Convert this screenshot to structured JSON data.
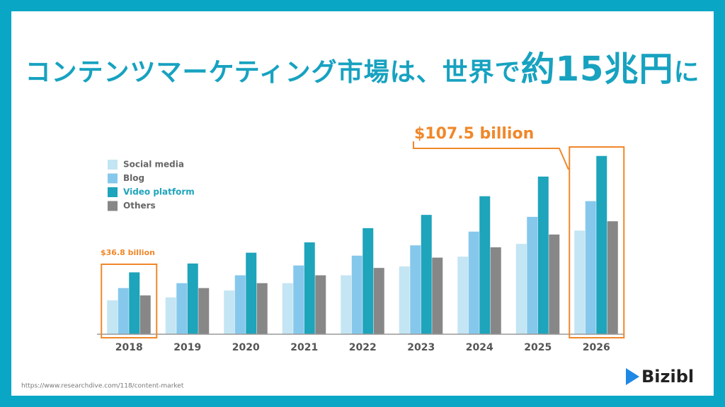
{
  "chart_data": {
    "type": "bar",
    "title": [
      "コンテンツマーケティング市場は、世界で",
      "約15兆円",
      "に"
    ],
    "categories": [
      "2018",
      "2019",
      "2020",
      "2021",
      "2022",
      "2023",
      "2024",
      "2025",
      "2026"
    ],
    "series": [
      {
        "name": "Social media",
        "color": "#c4e5f3",
        "values": [
          6.9,
          7.5,
          8.9,
          10.4,
          12.0,
          13.8,
          15.8,
          18.4,
          21.1
        ]
      },
      {
        "name": "Blog",
        "color": "#86c8ec",
        "values": [
          9.4,
          10.4,
          12.0,
          14.0,
          16.0,
          18.1,
          20.9,
          23.9,
          27.1
        ]
      },
      {
        "name": "Video platform",
        "color": "#1ea4bb",
        "values": [
          12.6,
          14.4,
          16.6,
          18.7,
          21.6,
          24.3,
          28.1,
          32.1,
          36.3
        ]
      },
      {
        "name": "Others",
        "color": "#878787",
        "values": [
          7.9,
          9.4,
          10.4,
          12.0,
          13.5,
          15.6,
          17.7,
          20.3,
          23.0
        ]
      }
    ],
    "ylim": [
      0,
      40
    ],
    "annotations": [
      "$36.8 billion",
      "$107.5 billion"
    ],
    "highlight_color": "#f0872a",
    "source": "https://www.researchdive.com/118/content-market",
    "logo": "Bizibl"
  }
}
